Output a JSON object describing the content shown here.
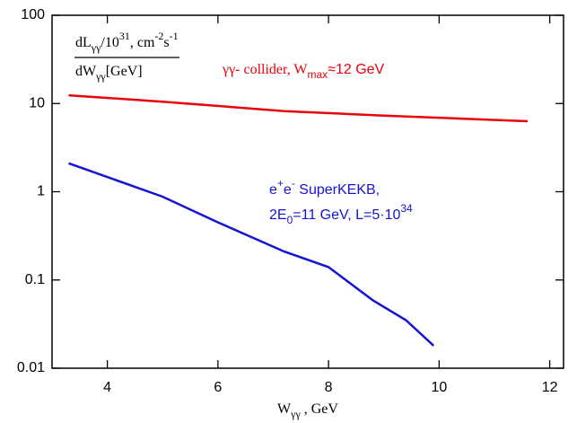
{
  "chart_data": {
    "type": "line",
    "ylog": true,
    "xlim": [
      3,
      12.25
    ],
    "ylim": [
      0.01,
      100
    ],
    "xticks": [
      4,
      6,
      8,
      10,
      12
    ],
    "yticks": [
      0.01,
      0.1,
      1,
      10,
      100
    ],
    "ylabel": {
      "numerator": [
        "dL",
        "γγ",
        "/10",
        "31",
        ", cm",
        "-2",
        "s",
        "-1"
      ],
      "denominator": [
        "dW",
        "γγ",
        "[GeV]"
      ]
    },
    "xlabel": [
      "W",
      "γγ",
      " , GeV"
    ],
    "annotations": [
      [
        "γγ- collider, W",
        "max",
        "≈12 GeV"
      ],
      [
        "e",
        "+",
        "e",
        "-",
        " SuperKEKB,"
      ],
      [
        "2E",
        "0",
        "=11 GeV, L=5·10",
        "34"
      ]
    ],
    "series": [
      {
        "color": "#e8000b",
        "x": [
          3.3,
          5,
          7.2,
          9,
          11.6
        ],
        "values": [
          12.4,
          10.5,
          8.2,
          7.3,
          6.3
        ]
      },
      {
        "color": "#1414d2",
        "x": [
          3.3,
          5,
          6,
          7.2,
          8,
          8.8,
          9.4,
          9.9
        ],
        "values": [
          2.1,
          0.88,
          0.45,
          0.21,
          0.14,
          0.059,
          0.035,
          0.018
        ]
      }
    ]
  }
}
